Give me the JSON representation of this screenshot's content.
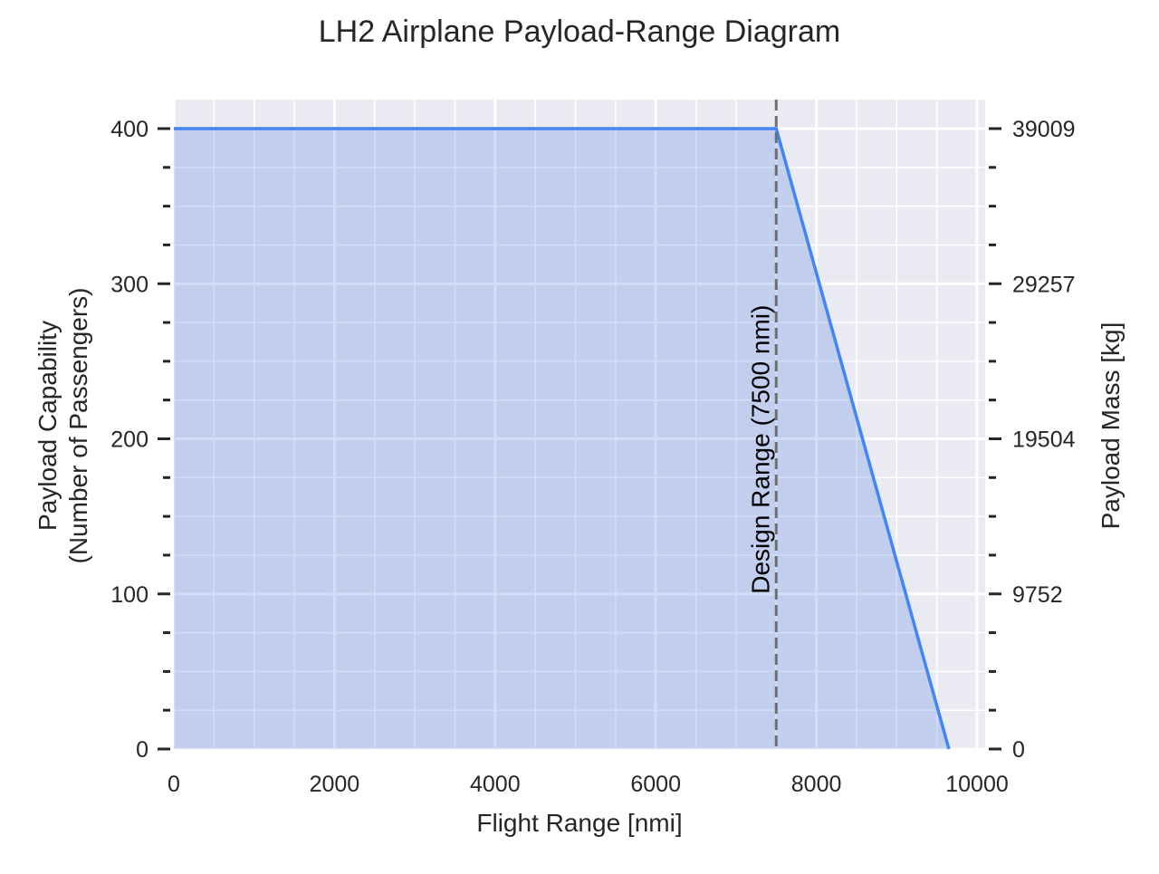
{
  "chart_data": {
    "type": "area",
    "title": "LH2 Airplane Payload-Range Diagram",
    "xlabel": "Flight Range [nmi]",
    "ylabel_lines": [
      "Payload Capability",
      "(Number of Passengers)"
    ],
    "y2label": "Payload Mass [kg]",
    "xlim": [
      0,
      10000
    ],
    "ylim": [
      0,
      400
    ],
    "x_ticks": [
      0,
      2000,
      4000,
      6000,
      8000,
      10000
    ],
    "y_ticks": [
      0,
      100,
      200,
      300,
      400
    ],
    "y2_ticks": [
      {
        "passengers": 0,
        "label": "0"
      },
      {
        "passengers": 100,
        "label": "9752"
      },
      {
        "passengers": 200,
        "label": "19504"
      },
      {
        "passengers": 300,
        "label": "29257"
      },
      {
        "passengers": 400,
        "label": "39009"
      }
    ],
    "series": [
      {
        "x": [
          0,
          7500,
          9650
        ],
        "y": [
          400,
          400,
          0
        ]
      }
    ],
    "design_range": {
      "x": 7500,
      "label": "Design Range (7500 nmi)"
    },
    "grid": true,
    "colors": {
      "line": "#4285f4",
      "fill": "#c8d6f2",
      "background": "#eaeaf2",
      "grid": "#ffffff",
      "design_line": "#6e6e6e"
    }
  }
}
